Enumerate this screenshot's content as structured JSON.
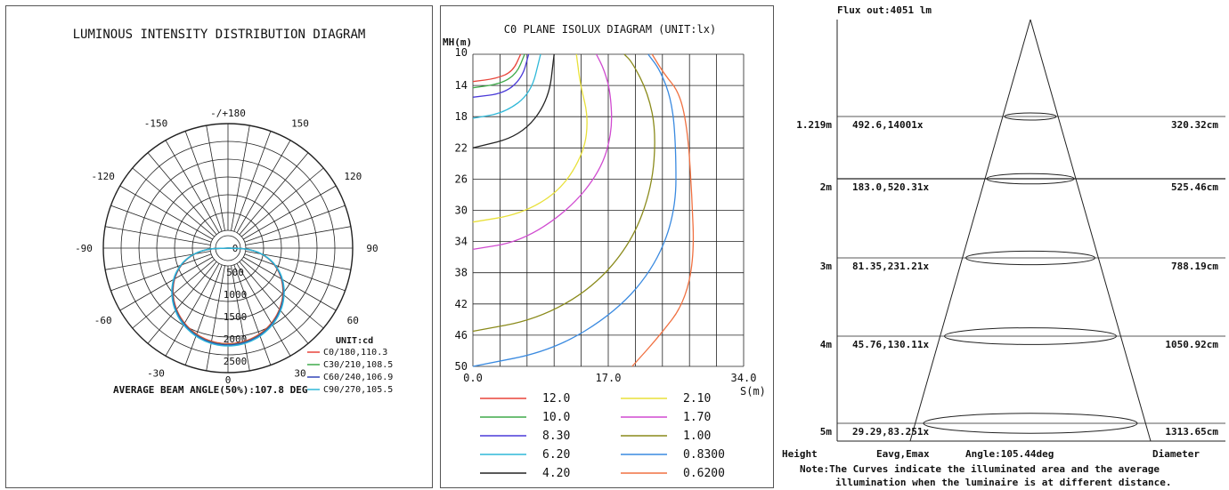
{
  "chart_data": [
    {
      "type": "polar",
      "title": "LUMINOUS INTENSITY DISTRIBUTION DIAGRAM",
      "angle_labels": [
        "-/+180",
        "-150",
        "150",
        "-120",
        "120",
        "-90",
        "90",
        "-60",
        "60",
        "-30",
        "30",
        "0"
      ],
      "radial_ticks": [
        0,
        500,
        1000,
        1500,
        2000,
        2500
      ],
      "radial_tick_labels": [
        "0",
        "500",
        "1000",
        "1500",
        "2000",
        "2500"
      ],
      "unit_label": "UNIT:cd",
      "series": [
        {
          "name": "C0/180,110.3",
          "color": "#e8443a",
          "peak": 2150,
          "half_angle": 55
        },
        {
          "name": "C30/210,108.5",
          "color": "#3faa4a",
          "peak": 2170,
          "half_angle": 54
        },
        {
          "name": "C60/240,106.9",
          "color": "#3345b8",
          "peak": 2180,
          "half_angle": 53
        },
        {
          "name": "C90/270,105.5",
          "color": "#2fb8d8",
          "peak": 2200,
          "half_angle": 52
        }
      ],
      "footer": "AVERAGE BEAM ANGLE(50%):107.8 DEG"
    },
    {
      "type": "isolux",
      "title": "C0 PLANE ISOLUX DIAGRAM (UNIT:lx)",
      "ylabel": "MH(m)",
      "xlabel": "S(m)",
      "y_ticks": [
        "10",
        "14",
        "18",
        "22",
        "26",
        "30",
        "34",
        "38",
        "42",
        "46",
        "50"
      ],
      "x_ticks": [
        "0.0",
        "17.0",
        "34.0"
      ],
      "xlim": [
        0,
        34
      ],
      "ylim": [
        10,
        50
      ],
      "legend": [
        {
          "label": "12.0",
          "color": "#e8443a"
        },
        {
          "label": "2.10",
          "color": "#e8e03a"
        },
        {
          "label": "10.0",
          "color": "#3faa4a"
        },
        {
          "label": "1.70",
          "color": "#d04ad0"
        },
        {
          "label": "8.30",
          "color": "#4a3ad8"
        },
        {
          "label": "1.00",
          "color": "#8a8a1a"
        },
        {
          "label": "6.20",
          "color": "#2fb8d8"
        },
        {
          "label": "0.8300",
          "color": "#3a8ae0"
        },
        {
          "label": "4.20",
          "color": "#222222"
        },
        {
          "label": "0.6200",
          "color": "#f07040"
        }
      ],
      "curves": [
        {
          "label": "12.0",
          "points": [
            [
              0,
              13.5
            ],
            [
              3,
              13.1
            ],
            [
              5,
              12.2
            ],
            [
              6,
              10
            ]
          ]
        },
        {
          "label": "10.0",
          "points": [
            [
              0,
              14.3
            ],
            [
              3.5,
              13.8
            ],
            [
              5.5,
              12.5
            ],
            [
              6.5,
              10
            ]
          ]
        },
        {
          "label": "8.30",
          "points": [
            [
              0,
              15.5
            ],
            [
              4,
              15
            ],
            [
              6.2,
              13
            ],
            [
              7,
              10
            ]
          ]
        },
        {
          "label": "6.20",
          "points": [
            [
              0,
              18.2
            ],
            [
              4,
              17.5
            ],
            [
              7.3,
              15
            ],
            [
              8.5,
              10
            ]
          ]
        },
        {
          "label": "4.20",
          "points": [
            [
              0,
              22
            ],
            [
              6,
              20.5
            ],
            [
              9.5,
              16
            ],
            [
              10.2,
              10
            ]
          ]
        },
        {
          "label": "2.10",
          "points": [
            [
              0,
              31.5
            ],
            [
              6,
              30.5
            ],
            [
              11,
              27.5
            ],
            [
              14,
              22.5
            ],
            [
              14.5,
              18
            ],
            [
              13.5,
              14
            ],
            [
              13,
              10
            ]
          ]
        },
        {
          "label": "1.70",
          "points": [
            [
              0,
              35
            ],
            [
              6,
              34
            ],
            [
              12,
              30
            ],
            [
              16,
              25
            ],
            [
              17.5,
              20
            ],
            [
              17.3,
              15
            ],
            [
              16.5,
              12
            ],
            [
              15.5,
              10
            ]
          ]
        },
        {
          "label": "1.00",
          "points": [
            [
              0,
              45.5
            ],
            [
              8,
              44
            ],
            [
              15,
              40
            ],
            [
              20,
              34
            ],
            [
              22.5,
              27
            ],
            [
              23,
              20
            ],
            [
              22,
              15
            ],
            [
              20,
              11
            ],
            [
              19,
              10
            ]
          ]
        },
        {
          "label": "0.8300",
          "points": [
            [
              0,
              50
            ],
            [
              10,
              48
            ],
            [
              18,
              43
            ],
            [
              23,
              37
            ],
            [
              25.5,
              30
            ],
            [
              25.5,
              22
            ],
            [
              25,
              16
            ],
            [
              23.5,
              12
            ],
            [
              22,
              10
            ]
          ]
        },
        {
          "label": "0.6200",
          "points": [
            [
              20,
              50
            ],
            [
              23.5,
              46
            ],
            [
              26.5,
              42
            ],
            [
              27.8,
              36
            ],
            [
              27.5,
              28
            ],
            [
              27,
              20
            ],
            [
              26,
              15
            ],
            [
              24,
              12.5
            ],
            [
              22.5,
              10
            ]
          ]
        }
      ]
    },
    {
      "type": "table",
      "title": "Flux out:4051 lm",
      "columns": [
        "Height",
        "Eavg,Emax",
        "Angle:105.44deg",
        "Diameter"
      ],
      "rows": [
        {
          "height": "1.219m",
          "values": "492.6,14001x",
          "diameter": "320.32cm"
        },
        {
          "height": "2m",
          "values": "183.0,520.31x",
          "diameter": "525.46cm"
        },
        {
          "height": "3m",
          "values": "81.35,231.21x",
          "diameter": "788.19cm"
        },
        {
          "height": "4m",
          "values": "45.76,130.11x",
          "diameter": "1050.92cm"
        },
        {
          "height": "5m",
          "values": "29.29,83.251x",
          "diameter": "1313.65cm"
        }
      ],
      "note_line1": "Note:The Curves indicate the illuminated area and the average",
      "note_line2": "illumination when the luminaire is at different distance."
    }
  ]
}
